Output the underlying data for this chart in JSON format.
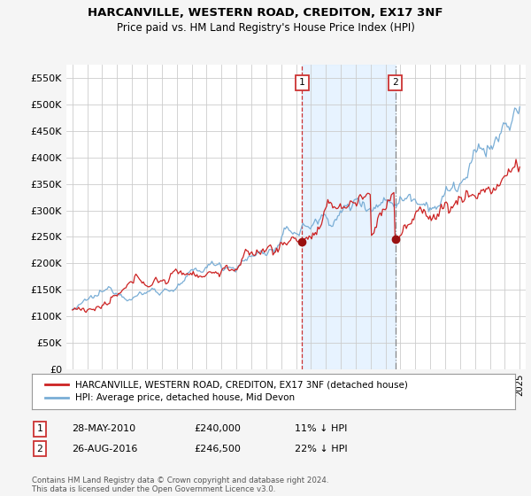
{
  "title": "HARCANVILLE, WESTERN ROAD, CREDITON, EX17 3NF",
  "subtitle": "Price paid vs. HM Land Registry's House Price Index (HPI)",
  "ylim": [
    0,
    575000
  ],
  "yticks": [
    0,
    50000,
    100000,
    150000,
    200000,
    250000,
    300000,
    350000,
    400000,
    450000,
    500000,
    550000
  ],
  "ytick_labels": [
    "£0",
    "£50K",
    "£100K",
    "£150K",
    "£200K",
    "£250K",
    "£300K",
    "£350K",
    "£400K",
    "£450K",
    "£500K",
    "£550K"
  ],
  "hpi_color": "#7aaed6",
  "price_color": "#cc2222",
  "marker1_year": 2010.4,
  "marker2_year": 2016.65,
  "marker1_price": 240000,
  "marker2_price": 246500,
  "annotation1": [
    "28-MAY-2010",
    "£240,000",
    "11% ↓ HPI"
  ],
  "annotation2": [
    "26-AUG-2016",
    "£246,500",
    "22% ↓ HPI"
  ],
  "legend_line1": "HARCANVILLE, WESTERN ROAD, CREDITON, EX17 3NF (detached house)",
  "legend_line2": "HPI: Average price, detached house, Mid Devon",
  "footer": "Contains HM Land Registry data © Crown copyright and database right 2024.\nThis data is licensed under the Open Government Licence v3.0.",
  "background_color": "#f5f5f5",
  "plot_bg": "#ffffff",
  "span_color": "#ddeeff",
  "marker1_vline_color": "#cc3333",
  "marker1_vline_style": "--",
  "marker2_vline_color": "#888888",
  "marker2_vline_style": "-.",
  "xstart": 1995,
  "xend": 2025
}
